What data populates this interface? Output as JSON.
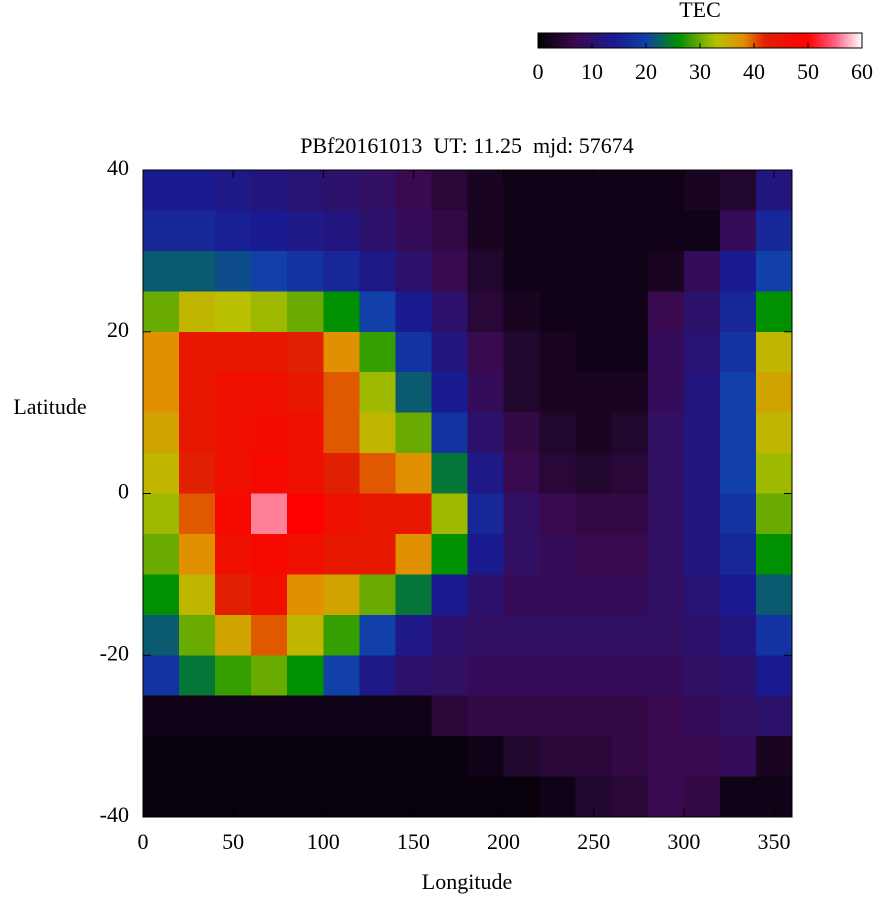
{
  "chart_data": {
    "type": "heatmap",
    "title": "PBf20161013  UT: 11.25  mjd: 57674",
    "x_label": "Longitude",
    "y_label": "Latitude",
    "colorbar_label": "TEC",
    "x": [
      10,
      30,
      50,
      70,
      90,
      110,
      130,
      150,
      170,
      190,
      210,
      230,
      250,
      270,
      290,
      310,
      330,
      350
    ],
    "y": [
      37.5,
      32.5,
      27.5,
      22.5,
      17.5,
      12.5,
      7.5,
      2.5,
      -2.5,
      -7.5,
      -12.5,
      -17.5,
      -22.5,
      -27.5,
      -32.5,
      -37.5
    ],
    "z": [
      [
        14,
        14,
        13,
        12,
        11,
        10,
        9,
        7,
        5,
        3,
        2,
        2,
        2,
        2,
        2,
        3,
        4,
        12
      ],
      [
        16,
        16,
        15,
        14,
        13,
        12,
        10,
        8,
        6,
        3,
        2,
        2,
        2,
        2,
        2,
        2,
        8,
        16
      ],
      [
        22,
        22,
        21,
        20,
        18,
        16,
        13,
        10,
        7,
        4,
        2,
        2,
        2,
        2,
        3,
        8,
        14,
        20
      ],
      [
        30,
        34,
        33,
        32,
        30,
        26,
        20,
        14,
        10,
        5,
        3,
        2,
        2,
        2,
        7,
        10,
        16,
        26
      ],
      [
        38,
        44,
        44,
        44,
        42,
        38,
        28,
        18,
        12,
        7,
        4,
        3,
        2,
        2,
        8,
        11,
        18,
        34
      ],
      [
        38,
        44,
        46,
        46,
        44,
        40,
        32,
        22,
        14,
        8,
        4,
        3,
        3,
        3,
        8,
        12,
        20,
        36
      ],
      [
        36,
        44,
        46,
        47,
        46,
        40,
        34,
        30,
        18,
        10,
        6,
        4,
        3,
        4,
        9,
        12,
        20,
        34
      ],
      [
        34,
        42,
        46,
        48,
        46,
        42,
        40,
        38,
        24,
        13,
        7,
        5,
        4,
        5,
        9,
        12,
        20,
        32
      ],
      [
        32,
        40,
        48,
        56,
        50,
        46,
        44,
        44,
        32,
        16,
        9,
        7,
        6,
        6,
        9,
        12,
        18,
        30
      ],
      [
        30,
        38,
        46,
        48,
        46,
        44,
        44,
        38,
        26,
        14,
        9,
        8,
        7,
        7,
        9,
        12,
        16,
        26
      ],
      [
        26,
        34,
        42,
        46,
        38,
        36,
        30,
        24,
        14,
        10,
        8,
        8,
        8,
        8,
        9,
        11,
        14,
        22
      ],
      [
        22,
        30,
        36,
        40,
        34,
        28,
        20,
        13,
        10,
        9,
        9,
        9,
        9,
        9,
        9,
        10,
        12,
        18
      ],
      [
        18,
        24,
        28,
        30,
        26,
        20,
        13,
        10,
        9,
        8,
        8,
        8,
        8,
        8,
        8,
        9,
        10,
        14
      ],
      [
        2,
        2,
        2,
        2,
        2,
        2,
        2,
        2,
        5,
        6,
        6,
        6,
        6,
        6,
        7,
        8,
        9,
        10
      ],
      [
        1,
        1,
        1,
        1,
        1,
        1,
        1,
        1,
        1,
        2,
        4,
        5,
        5,
        6,
        7,
        7,
        8,
        3
      ],
      [
        1,
        1,
        1,
        1,
        1,
        1,
        1,
        1,
        1,
        1,
        1,
        2,
        4,
        5,
        7,
        6,
        2,
        2
      ]
    ],
    "xlim": [
      0,
      360
    ],
    "ylim": [
      -40,
      40
    ],
    "xticks": [
      0,
      50,
      100,
      150,
      200,
      250,
      300,
      350
    ],
    "yticks": [
      -40,
      -20,
      0,
      20,
      40
    ],
    "clim": [
      0,
      60
    ],
    "cticks": [
      0,
      10,
      20,
      30,
      40,
      50,
      60
    ],
    "colorscale": [
      [
        0,
        "#000000"
      ],
      [
        7,
        "#3a0a50"
      ],
      [
        14,
        "#1a1a90"
      ],
      [
        20,
        "#1040a8"
      ],
      [
        26,
        "#009000"
      ],
      [
        33,
        "#b8c000"
      ],
      [
        38,
        "#e09000"
      ],
      [
        42,
        "#e02000"
      ],
      [
        50,
        "#ff0000"
      ],
      [
        55,
        "#ff6080"
      ],
      [
        60,
        "#ffffff"
      ]
    ]
  }
}
